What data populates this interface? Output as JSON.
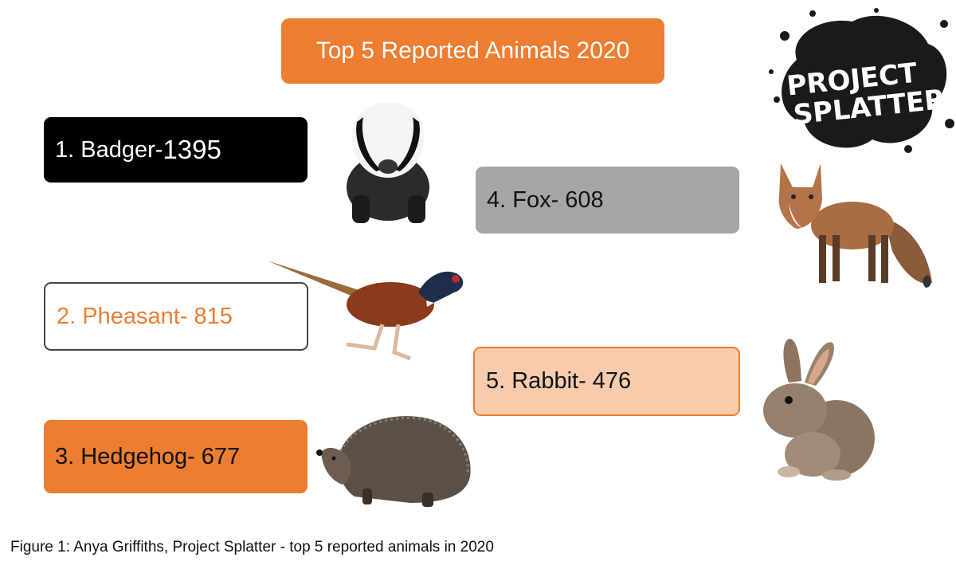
{
  "title": "Top 5 Reported Animals 2020",
  "items": [
    {
      "label": "1. Badger-",
      "count": "1395"
    },
    {
      "label": "2. Pheasant- 815"
    },
    {
      "label": "3. Hedgehog- 677"
    },
    {
      "label": "4. Fox- 608"
    },
    {
      "label": "5. Rabbit- 476"
    }
  ],
  "logo": {
    "line1": "PROJECT",
    "line2": "SPLATTER"
  },
  "caption": "Figure 1: Anya Griffiths, Project Splatter - top 5 reported animals in 2020",
  "colors": {
    "orange": "#ec7d31",
    "black": "#000000",
    "grey": "#a6a6a6",
    "peach": "#f8cbad"
  },
  "icons": [
    "badger-image",
    "pheasant-image",
    "hedgehog-image",
    "fox-image",
    "rabbit-image",
    "project-splatter-logo"
  ]
}
